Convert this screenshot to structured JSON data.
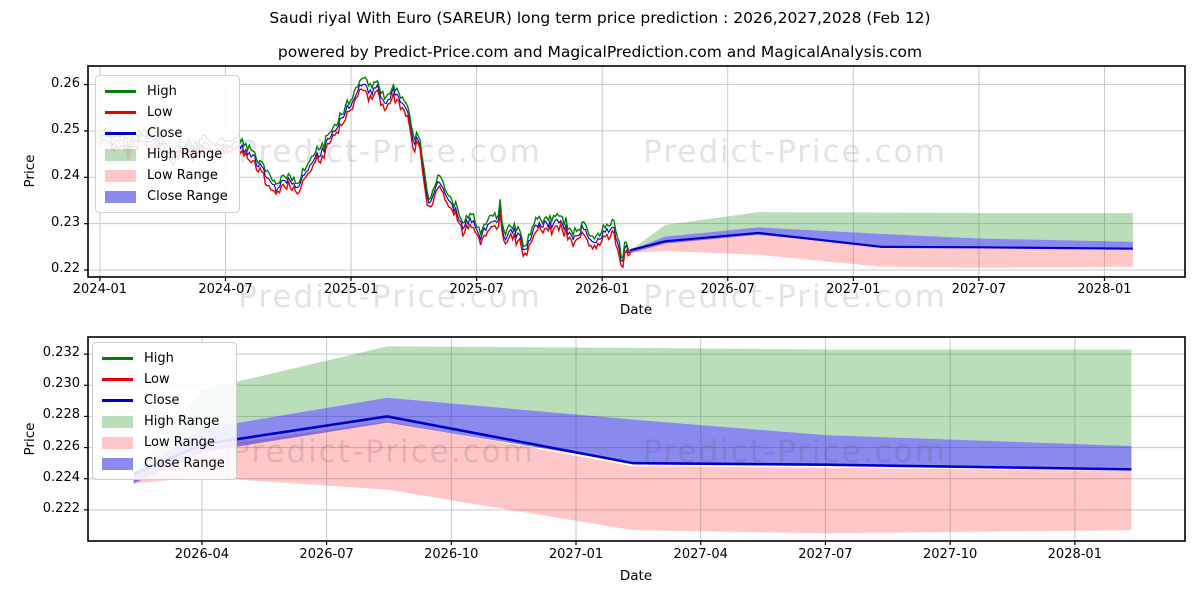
{
  "header": {
    "title": "Saudi riyal With Euro (SAREUR) long term price prediction : 2026,2027,2028 (Feb 12)",
    "subtitle": "powered by Predict-Price.com and MagicalPrediction.com and MagicalAnalysis.com"
  },
  "watermark": {
    "text": "Predict-Price.com"
  },
  "colors": {
    "line_high": "#008000",
    "line_low": "#e60000",
    "line_close": "#0000cc",
    "fill_high_range": "rgba(0,128,0,0.27)",
    "fill_low_range": "rgba(255,30,30,0.25)",
    "fill_close_range": "rgba(30,30,222,0.52)",
    "grid": "#c9c9c9",
    "spine": "#000000"
  },
  "legend": {
    "entries": [
      {
        "label": "High",
        "swatch": "line",
        "color": "#008000"
      },
      {
        "label": "Low",
        "swatch": "line",
        "color": "#e60000"
      },
      {
        "label": "Close",
        "swatch": "line",
        "color": "#0000cc"
      },
      {
        "label": "High Range",
        "swatch": "patch",
        "color": "rgba(0,128,0,0.27)"
      },
      {
        "label": "Low Range",
        "swatch": "patch",
        "color": "rgba(255,30,30,0.25)"
      },
      {
        "label": "Close Range",
        "swatch": "patch",
        "color": "rgba(30,30,222,0.52)"
      }
    ]
  },
  "chart_data": [
    {
      "type": "line",
      "name": "history-and-forecast",
      "xlabel": "Date",
      "ylabel": "Price",
      "grid": true,
      "legend_position": "upper-left",
      "xlim_months": [
        -0.57,
        51.85
      ],
      "ylim": [
        0.2185,
        0.264
      ],
      "xticks": [
        {
          "label": "2024-01",
          "m": 0
        },
        {
          "label": "2024-07",
          "m": 6
        },
        {
          "label": "2025-01",
          "m": 12
        },
        {
          "label": "2025-07",
          "m": 18
        },
        {
          "label": "2026-01",
          "m": 24
        },
        {
          "label": "2026-07",
          "m": 30
        },
        {
          "label": "2027-01",
          "m": 36
        },
        {
          "label": "2027-07",
          "m": 42
        },
        {
          "label": "2028-01",
          "m": 48
        }
      ],
      "yticks": [
        {
          "label": "0.22",
          "v": 0.22
        },
        {
          "label": "0.23",
          "v": 0.23
        },
        {
          "label": "0.24",
          "v": 0.24
        },
        {
          "label": "0.25",
          "v": 0.25
        },
        {
          "label": "0.26",
          "v": 0.26
        }
      ],
      "history": {
        "series": [
          "High",
          "Low",
          "Close"
        ],
        "noise_amplitude": 0.0009,
        "high_low_spread": 0.0011,
        "close_keypoints": [
          [
            "2024-01-01",
            0.2478
          ],
          [
            "2024-01-10",
            0.2496
          ],
          [
            "2024-01-20",
            0.2468
          ],
          [
            "2024-02-01",
            0.2482
          ],
          [
            "2024-02-12",
            0.2458
          ],
          [
            "2024-02-22",
            0.2479
          ],
          [
            "2024-03-04",
            0.2491
          ],
          [
            "2024-03-14",
            0.247
          ],
          [
            "2024-03-24",
            0.2487
          ],
          [
            "2024-04-04",
            0.2458
          ],
          [
            "2024-04-16",
            0.2448
          ],
          [
            "2024-05-01",
            0.2471
          ],
          [
            "2024-05-16",
            0.2452
          ],
          [
            "2024-06-01",
            0.2477
          ],
          [
            "2024-06-12",
            0.2458
          ],
          [
            "2024-06-22",
            0.2473
          ],
          [
            "2024-07-04",
            0.2461
          ],
          [
            "2024-07-14",
            0.2477
          ],
          [
            "2024-07-26",
            0.2464
          ],
          [
            "2024-08-06",
            0.245
          ],
          [
            "2024-08-16",
            0.2433
          ],
          [
            "2024-08-28",
            0.241
          ],
          [
            "2024-09-08",
            0.2383
          ],
          [
            "2024-09-16",
            0.2374
          ],
          [
            "2024-09-26",
            0.2401
          ],
          [
            "2024-10-06",
            0.2386
          ],
          [
            "2024-10-16",
            0.2381
          ],
          [
            "2024-10-26",
            0.2407
          ],
          [
            "2024-11-06",
            0.2437
          ],
          [
            "2024-11-18",
            0.2453
          ],
          [
            "2024-12-02",
            0.2487
          ],
          [
            "2024-12-16",
            0.2526
          ],
          [
            "2025-01-01",
            0.256
          ],
          [
            "2025-01-10",
            0.2588
          ],
          [
            "2025-01-20",
            0.2604
          ],
          [
            "2025-01-28",
            0.2578
          ],
          [
            "2025-02-08",
            0.2597
          ],
          [
            "2025-02-18",
            0.2556
          ],
          [
            "2025-03-01",
            0.2586
          ],
          [
            "2025-03-12",
            0.2568
          ],
          [
            "2025-03-22",
            0.2553
          ],
          [
            "2025-04-01",
            0.2473
          ],
          [
            "2025-04-08",
            0.2487
          ],
          [
            "2025-04-15",
            0.2418
          ],
          [
            "2025-04-22",
            0.2337
          ],
          [
            "2025-05-01",
            0.2378
          ],
          [
            "2025-05-08",
            0.2391
          ],
          [
            "2025-05-18",
            0.2359
          ],
          [
            "2025-06-01",
            0.2325
          ],
          [
            "2025-06-12",
            0.2296
          ],
          [
            "2025-06-22",
            0.2311
          ],
          [
            "2025-07-01",
            0.2287
          ],
          [
            "2025-07-06",
            0.2266
          ],
          [
            "2025-07-16",
            0.2296
          ],
          [
            "2025-08-01",
            0.2302
          ],
          [
            "2025-08-05",
            0.2329
          ],
          [
            "2025-08-11",
            0.2269
          ],
          [
            "2025-08-22",
            0.2287
          ],
          [
            "2025-09-02",
            0.2273
          ],
          [
            "2025-09-12",
            0.2239
          ],
          [
            "2025-09-22",
            0.2283
          ],
          [
            "2025-10-04",
            0.2301
          ],
          [
            "2025-10-16",
            0.2297
          ],
          [
            "2025-11-01",
            0.2311
          ],
          [
            "2025-11-12",
            0.2283
          ],
          [
            "2025-11-22",
            0.2268
          ],
          [
            "2025-12-04",
            0.2291
          ],
          [
            "2025-12-20",
            0.2259
          ],
          [
            "2026-01-03",
            0.2277
          ],
          [
            "2026-01-16",
            0.2297
          ],
          [
            "2026-01-30",
            0.2213
          ],
          [
            "2026-02-05",
            0.2257
          ],
          [
            "2026-02-09",
            0.2234
          ],
          [
            "2026-02-12",
            0.2243
          ]
        ]
      },
      "forecast": {
        "dates": [
          "2026-02-12",
          "2026-04-01",
          "2026-08-15",
          "2027-02-12",
          "2027-07-01",
          "2028-02-12"
        ],
        "close": [
          0.2243,
          0.2262,
          0.228,
          0.225,
          0.2249,
          0.2246
        ],
        "close_range": {
          "upper": [
            0.2243,
            0.2272,
            0.2292,
            0.2278,
            0.2268,
            0.2261
          ],
          "lower": [
            0.2237,
            0.2257,
            0.2276,
            0.225,
            0.2249,
            0.2246
          ]
        },
        "high_range": {
          "upper": [
            0.2243,
            0.2297,
            0.2325,
            0.2324,
            0.2323,
            0.2323
          ],
          "lower": [
            0.2243,
            0.2272,
            0.2292,
            0.2278,
            0.2268,
            0.2261
          ]
        },
        "low_range": {
          "upper": [
            0.2243,
            0.226,
            0.2277,
            0.2248,
            0.2247,
            0.2245
          ],
          "lower": [
            0.2237,
            0.2241,
            0.2233,
            0.2207,
            0.2205,
            0.2207
          ]
        }
      }
    },
    {
      "type": "line",
      "name": "forecast-zoom",
      "xlabel": "Date",
      "ylabel": "Price",
      "grid": true,
      "legend_position": "upper-left",
      "xlim_months": [
        24.26,
        50.65
      ],
      "ylim": [
        0.22,
        0.2331
      ],
      "xticks": [
        {
          "label": "2026-04",
          "m": 27
        },
        {
          "label": "2026-07",
          "m": 30
        },
        {
          "label": "2026-10",
          "m": 33
        },
        {
          "label": "2027-01",
          "m": 36
        },
        {
          "label": "2027-04",
          "m": 39
        },
        {
          "label": "2027-07",
          "m": 42
        },
        {
          "label": "2027-10",
          "m": 45
        },
        {
          "label": "2028-01",
          "m": 48
        }
      ],
      "yticks": [
        {
          "label": "0.222",
          "v": 0.222
        },
        {
          "label": "0.224",
          "v": 0.224
        },
        {
          "label": "0.226",
          "v": 0.226
        },
        {
          "label": "0.228",
          "v": 0.228
        },
        {
          "label": "0.230",
          "v": 0.23
        },
        {
          "label": "0.232",
          "v": 0.232
        }
      ],
      "forecast": {
        "dates": [
          "2026-02-12",
          "2026-04-01",
          "2026-08-15",
          "2027-02-12",
          "2027-07-01",
          "2028-02-12"
        ],
        "close": [
          0.2243,
          0.2262,
          0.228,
          0.225,
          0.2249,
          0.2246
        ],
        "close_range": {
          "upper": [
            0.2243,
            0.2272,
            0.2292,
            0.2278,
            0.2268,
            0.2261
          ],
          "lower": [
            0.2237,
            0.2257,
            0.2276,
            0.225,
            0.2249,
            0.2246
          ]
        },
        "high_range": {
          "upper": [
            0.2243,
            0.2297,
            0.2325,
            0.2324,
            0.2323,
            0.2323
          ],
          "lower": [
            0.2243,
            0.2272,
            0.2292,
            0.2278,
            0.2268,
            0.2261
          ]
        },
        "low_range": {
          "upper": [
            0.2243,
            0.226,
            0.2277,
            0.2248,
            0.2247,
            0.2245
          ],
          "lower": [
            0.2237,
            0.2241,
            0.2233,
            0.2207,
            0.2205,
            0.2207
          ]
        }
      }
    }
  ]
}
